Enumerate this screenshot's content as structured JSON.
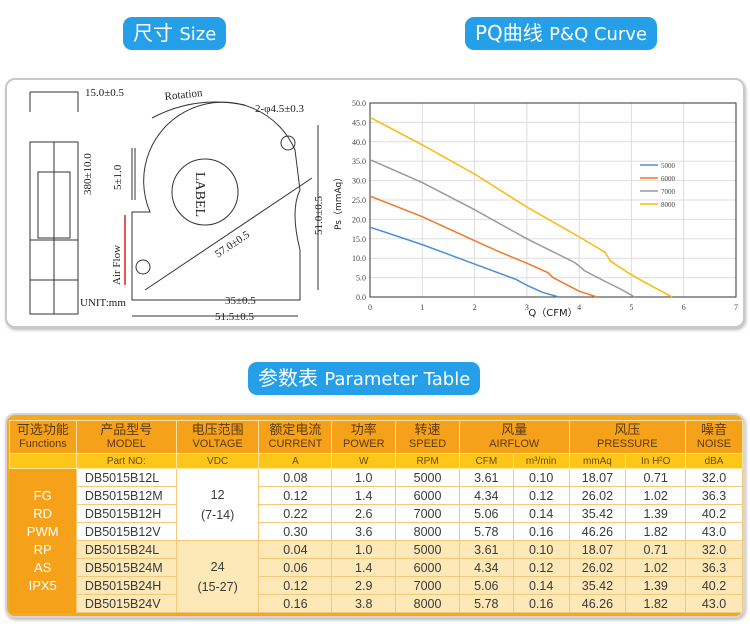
{
  "headings": {
    "size_cn": "尺寸",
    "size_en": "Size",
    "pq_cn": "PQ曲线",
    "pq_en": "P&Q Curve",
    "table_cn": "参数表",
    "table_en": "Parameter Table"
  },
  "drawing": {
    "thickness": "15.0±0.5",
    "rotation": "Rotation",
    "holes": "2-φ4.5±0.3",
    "lead": "380±10.0",
    "strip": "5±1.0",
    "label": "LABEL",
    "diag": "57.0±0.5",
    "height": "51.0±0.5",
    "airflow": "Air Flow",
    "unit": "UNIT:mm",
    "bottom1": "35±0.5",
    "bottom2": "51.5±0.5"
  },
  "chart_data": {
    "type": "line",
    "xlabel": "Q（CFM）",
    "ylabel": "Ps（mmAq）",
    "xlim": [
      0,
      7
    ],
    "ylim": [
      0,
      50
    ],
    "x_ticks": [
      "0",
      "1",
      "2",
      "3",
      "4",
      "5",
      "6",
      "7"
    ],
    "y_ticks": [
      "0.0",
      "5.0",
      "10.0",
      "15.0",
      "20.0",
      "25.0",
      "30.0",
      "35.0",
      "40.0",
      "45.0",
      "50.0"
    ],
    "grid": true,
    "legend": "right",
    "series": [
      {
        "name": "5000",
        "color": "#4a8fd8",
        "points": [
          [
            0,
            18
          ],
          [
            1,
            13.5
          ],
          [
            2,
            8.5
          ],
          [
            2.8,
            4.5
          ],
          [
            3,
            3
          ],
          [
            3.3,
            1.2
          ],
          [
            3.61,
            0
          ]
        ]
      },
      {
        "name": "6000",
        "color": "#ef7a2a",
        "points": [
          [
            0,
            26
          ],
          [
            1,
            20.7
          ],
          [
            2,
            14.5
          ],
          [
            2.5,
            11.5
          ],
          [
            3,
            8.7
          ],
          [
            3.4,
            6.3
          ],
          [
            3.5,
            5
          ],
          [
            4,
            1.5
          ],
          [
            4.34,
            0
          ]
        ]
      },
      {
        "name": "7000",
        "color": "#9a9a9a",
        "points": [
          [
            0,
            35.4
          ],
          [
            1,
            29.5
          ],
          [
            2,
            22.5
          ],
          [
            3,
            15
          ],
          [
            3.9,
            9
          ],
          [
            4,
            8
          ],
          [
            4.1,
            6.8
          ],
          [
            4.5,
            4
          ],
          [
            4.8,
            2
          ],
          [
            5.06,
            0
          ]
        ]
      },
      {
        "name": "8000",
        "color": "#fdb70a",
        "points": [
          [
            0,
            46.3
          ],
          [
            1,
            39.2
          ],
          [
            2,
            31.7
          ],
          [
            3,
            23.2
          ],
          [
            4,
            15.5
          ],
          [
            4.5,
            11.5
          ],
          [
            4.6,
            9.2
          ],
          [
            5,
            5.7
          ],
          [
            5.5,
            2
          ],
          [
            5.78,
            0
          ]
        ]
      }
    ]
  },
  "table": {
    "headers": [
      {
        "cn": "可选功能",
        "en": "Functions"
      },
      {
        "cn": "产品型号",
        "en": "MODEL"
      },
      {
        "cn": "电压范围",
        "en": "VOLTAGE"
      },
      {
        "cn": "额定电流",
        "en": "CURRENT"
      },
      {
        "cn": "功率",
        "en": "POWER"
      },
      {
        "cn": "转速",
        "en": "SPEED"
      },
      {
        "cn": "风量",
        "en": "AIRFLOW"
      },
      {
        "cn": "风压",
        "en": "PRESSURE"
      },
      {
        "cn": "噪音",
        "en": "NOISE"
      }
    ],
    "units": [
      "Part NO:",
      "VDC",
      "A",
      "W",
      "RPM",
      "CFM",
      "m³/min",
      "mmAq",
      "In H²O",
      "dBA"
    ],
    "functions": [
      "FG",
      "RD",
      "PWM",
      "RP",
      "AS",
      "IPX5"
    ],
    "voltage_groups": [
      {
        "v": "12",
        "range": "(7-14)"
      },
      {
        "v": "24",
        "range": "(15-27)"
      }
    ],
    "rows": [
      [
        "DB5015B12L",
        "0.08",
        "1.0",
        "5000",
        "3.61",
        "0.10",
        "18.07",
        "0.71",
        "32.0"
      ],
      [
        "DB5015B12M",
        "0.12",
        "1.4",
        "6000",
        "4.34",
        "0.12",
        "26.02",
        "1.02",
        "36.3"
      ],
      [
        "DB5015B12H",
        "0.22",
        "2.6",
        "7000",
        "5.06",
        "0.14",
        "35.42",
        "1.39",
        "40.2"
      ],
      [
        "DB5015B12V",
        "0.30",
        "3.6",
        "8000",
        "5.78",
        "0.16",
        "46.26",
        "1.82",
        "43.0"
      ],
      [
        "DB5015B24L",
        "0.04",
        "1.0",
        "5000",
        "3.61",
        "0.10",
        "18.07",
        "0.71",
        "32.0"
      ],
      [
        "DB5015B24M",
        "0.06",
        "1.4",
        "6000",
        "4.34",
        "0.12",
        "26.02",
        "1.02",
        "36.3"
      ],
      [
        "DB5015B24H",
        "0.12",
        "2.9",
        "7000",
        "5.06",
        "0.14",
        "35.42",
        "1.39",
        "40.2"
      ],
      [
        "DB5015B24V",
        "0.16",
        "3.8",
        "8000",
        "5.78",
        "0.16",
        "46.26",
        "1.82",
        "43.0"
      ]
    ]
  }
}
